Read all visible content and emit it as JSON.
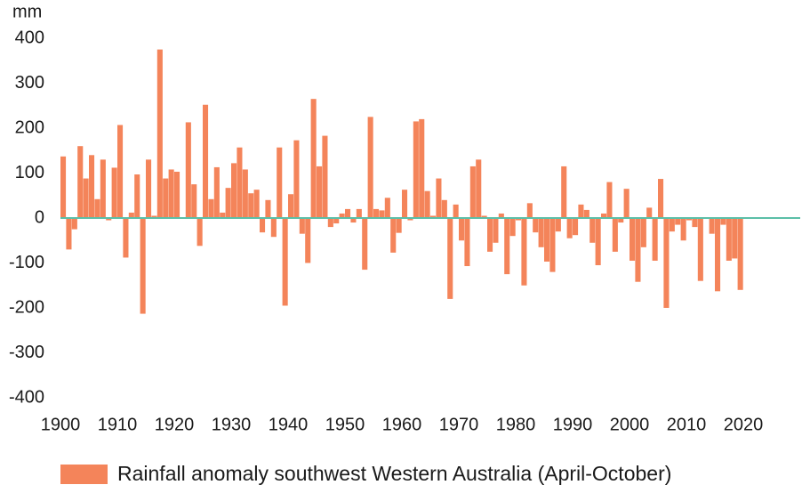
{
  "chart_data": {
    "type": "bar",
    "y_label": "mm",
    "x": [
      1900,
      1901,
      1902,
      1903,
      1904,
      1905,
      1906,
      1907,
      1908,
      1909,
      1910,
      1911,
      1912,
      1913,
      1914,
      1915,
      1916,
      1917,
      1918,
      1919,
      1920,
      1921,
      1922,
      1923,
      1924,
      1925,
      1926,
      1927,
      1928,
      1929,
      1930,
      1931,
      1932,
      1933,
      1934,
      1935,
      1936,
      1937,
      1938,
      1939,
      1940,
      1941,
      1942,
      1943,
      1944,
      1945,
      1946,
      1947,
      1948,
      1949,
      1950,
      1951,
      1952,
      1953,
      1954,
      1955,
      1956,
      1957,
      1958,
      1959,
      1960,
      1961,
      1962,
      1963,
      1964,
      1965,
      1966,
      1967,
      1968,
      1969,
      1970,
      1971,
      1972,
      1973,
      1974,
      1975,
      1976,
      1977,
      1978,
      1979,
      1980,
      1981,
      1982,
      1983,
      1984,
      1985,
      1986,
      1987,
      1988,
      1989,
      1990,
      1991,
      1992,
      1993,
      1994,
      1995,
      1996,
      1997,
      1998,
      1999,
      2000,
      2001,
      2002,
      2003,
      2004,
      2005,
      2006,
      2007,
      2008,
      2009,
      2010,
      2011,
      2012,
      2013,
      2014,
      2015,
      2016,
      2017,
      2018,
      2019
    ],
    "series": [
      {
        "name": "Rainfall anomaly southwest Western Australia (April-October)",
        "color": "#f4845a",
        "values": [
          137,
          -70,
          -25,
          160,
          88,
          140,
          42,
          130,
          -5,
          112,
          207,
          -88,
          12,
          97,
          -213,
          130,
          5,
          375,
          88,
          108,
          103,
          0,
          213,
          75,
          -62,
          252,
          42,
          113,
          12,
          67,
          122,
          157,
          108,
          55,
          63,
          -32,
          40,
          -42,
          157,
          -195,
          53,
          173,
          -35,
          -100,
          265,
          115,
          183,
          -20,
          -12,
          10,
          20,
          -10,
          20,
          -115,
          225,
          20,
          17,
          45,
          -77,
          -33,
          63,
          -5,
          215,
          220,
          60,
          5,
          88,
          40,
          -180,
          30,
          -50,
          -107,
          115,
          130,
          5,
          -75,
          -55,
          10,
          -125,
          -40,
          -5,
          -150,
          33,
          -32,
          -65,
          -97,
          -120,
          -30,
          115,
          -45,
          -38,
          30,
          18,
          -55,
          -105,
          10,
          80,
          -75,
          -10,
          65,
          -95,
          -142,
          -65,
          23,
          -95,
          87,
          -200,
          -30,
          -15,
          -50,
          -5,
          -20,
          -140,
          0,
          -35,
          -163,
          -15,
          -95,
          -90,
          -160
        ]
      }
    ],
    "zero_line_color": "#5bbfa8",
    "xlim": [
      1900,
      2030
    ],
    "xticks": [
      1900,
      1910,
      1920,
      1930,
      1940,
      1950,
      1960,
      1970,
      1980,
      1990,
      2000,
      2010,
      2020
    ],
    "ylim": [
      -400,
      400
    ],
    "yticks": [
      -400,
      -300,
      -200,
      -100,
      0,
      100,
      200,
      300,
      400
    ]
  }
}
